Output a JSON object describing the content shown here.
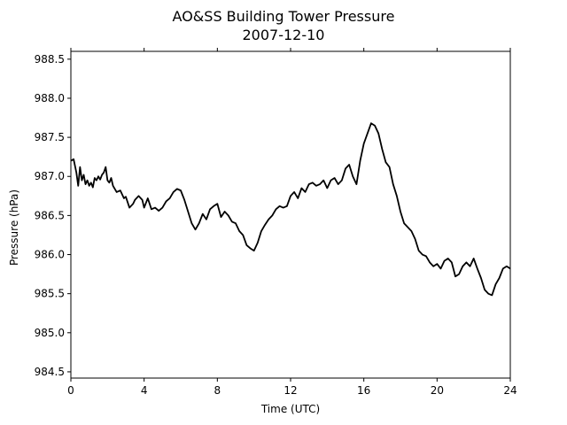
{
  "chart_data": {
    "type": "line",
    "title": "AO&SS Building Tower Pressure",
    "subtitle": "2007-12-10",
    "xlabel": "Time (UTC)",
    "ylabel": "Pressure (hPa)",
    "xlim": [
      0,
      24
    ],
    "ylim": [
      984.42,
      988.6
    ],
    "xticks": [
      0,
      4,
      8,
      12,
      16,
      20,
      24
    ],
    "yticks": [
      "984.5",
      "985.0",
      "985.5",
      "986.0",
      "986.5",
      "987.0",
      "987.5",
      "988.0",
      "988.5"
    ],
    "grid": false,
    "line_color": "#000000",
    "series": [
      {
        "x": [
          0.0,
          0.15,
          0.3,
          0.4,
          0.5,
          0.6,
          0.7,
          0.8,
          0.9,
          1.0,
          1.1,
          1.2,
          1.3,
          1.4,
          1.5,
          1.6,
          1.7,
          1.8,
          1.9,
          2.0,
          2.1,
          2.2,
          2.3,
          2.5,
          2.7,
          2.9,
          3.0,
          3.2,
          3.4,
          3.5,
          3.7,
          3.9,
          4.0,
          4.2,
          4.4,
          4.6,
          4.8,
          5.0,
          5.2,
          5.4,
          5.6,
          5.8,
          6.0,
          6.2,
          6.4,
          6.6,
          6.8,
          7.0,
          7.2,
          7.4,
          7.6,
          7.8,
          8.0,
          8.2,
          8.4,
          8.6,
          8.8,
          9.0,
          9.2,
          9.4,
          9.6,
          9.8,
          10.0,
          10.2,
          10.4,
          10.6,
          10.8,
          11.0,
          11.2,
          11.4,
          11.6,
          11.8,
          12.0,
          12.2,
          12.4,
          12.6,
          12.8,
          13.0,
          13.2,
          13.4,
          13.6,
          13.8,
          14.0,
          14.2,
          14.4,
          14.6,
          14.8,
          15.0,
          15.2,
          15.4,
          15.6,
          15.8,
          16.0,
          16.2,
          16.4,
          16.6,
          16.8,
          17.0,
          17.2,
          17.4,
          17.6,
          17.8,
          18.0,
          18.2,
          18.4,
          18.6,
          18.8,
          19.0,
          19.2,
          19.4,
          19.6,
          19.8,
          20.0,
          20.2,
          20.4,
          20.6,
          20.8,
          21.0,
          21.2,
          21.4,
          21.6,
          21.8,
          22.0,
          22.2,
          22.4,
          22.6,
          22.8,
          23.0,
          23.2,
          23.4,
          23.6,
          23.8,
          24.0
        ],
        "y": [
          987.2,
          987.22,
          987.05,
          986.88,
          987.12,
          986.95,
          987.02,
          986.9,
          986.95,
          986.88,
          986.92,
          986.86,
          986.98,
          986.95,
          987.0,
          986.96,
          987.02,
          987.05,
          987.12,
          986.95,
          986.92,
          986.98,
          986.88,
          986.8,
          986.82,
          986.72,
          986.74,
          986.6,
          986.65,
          986.7,
          986.75,
          986.7,
          986.6,
          986.72,
          986.58,
          986.6,
          986.56,
          986.6,
          986.68,
          986.72,
          986.8,
          986.84,
          986.82,
          986.7,
          986.55,
          986.4,
          986.32,
          986.4,
          986.52,
          986.45,
          986.58,
          986.62,
          986.65,
          986.48,
          986.55,
          986.5,
          986.42,
          986.4,
          986.3,
          986.25,
          986.12,
          986.08,
          986.05,
          986.15,
          986.3,
          986.38,
          986.45,
          986.5,
          986.58,
          986.62,
          986.6,
          986.62,
          986.75,
          986.8,
          986.72,
          986.85,
          986.8,
          986.9,
          986.92,
          986.88,
          986.9,
          986.95,
          986.85,
          986.95,
          986.98,
          986.9,
          986.95,
          987.1,
          987.15,
          987.0,
          986.9,
          987.2,
          987.42,
          987.55,
          987.68,
          987.65,
          987.55,
          987.35,
          987.18,
          987.12,
          986.9,
          986.75,
          986.55,
          986.4,
          986.35,
          986.3,
          986.2,
          986.05,
          986.0,
          985.98,
          985.9,
          985.85,
          985.88,
          985.82,
          985.92,
          985.95,
          985.9,
          985.72,
          985.75,
          985.85,
          985.9,
          985.85,
          985.95,
          985.82,
          985.7,
          985.55,
          985.5,
          985.48,
          985.62,
          985.7,
          985.82,
          985.85,
          985.82
        ]
      }
    ]
  }
}
